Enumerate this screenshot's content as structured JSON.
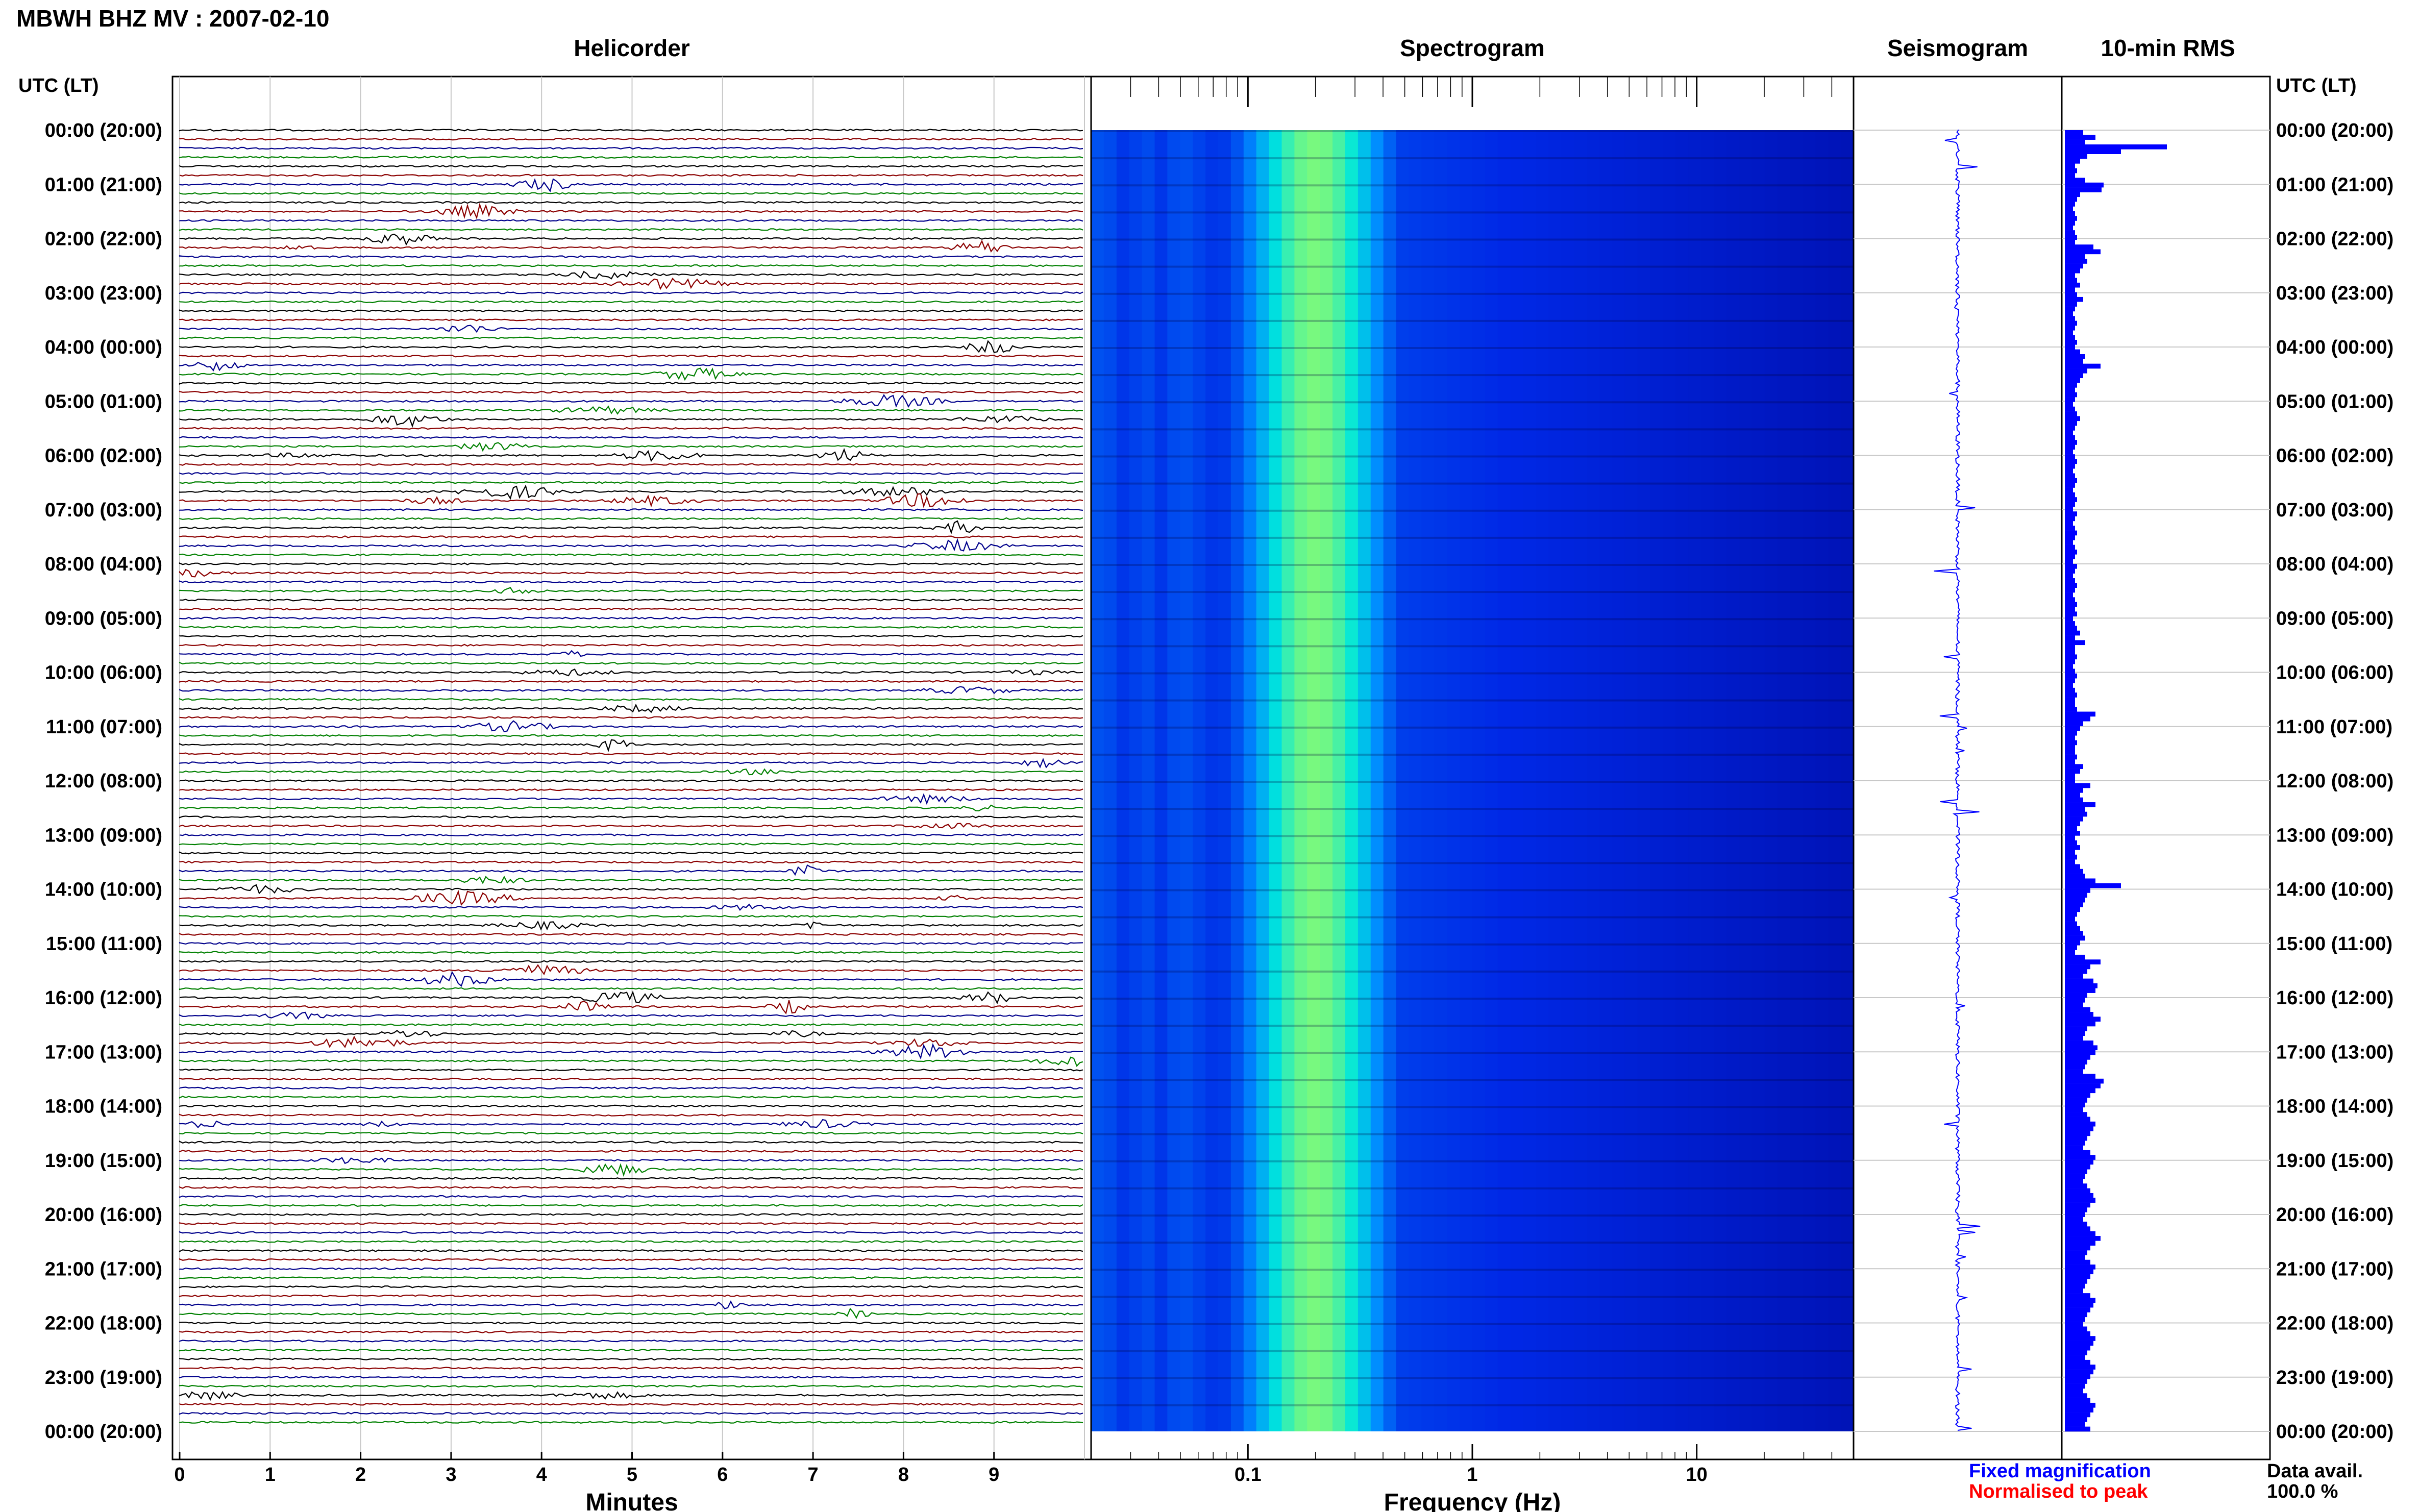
{
  "figure_title": "MBWH BHZ MV : 2007-02-10",
  "colors": {
    "trace_cycle": [
      "#000000",
      "#8b0000",
      "#00008b",
      "#008000"
    ],
    "spectrogram_low": "#00008b",
    "spectrogram_high": "#a0ff60",
    "seismogram": "#0000ff",
    "rms_bar": "#0000ff",
    "grid": "#c8c8c8"
  },
  "legend": {
    "fixed": {
      "text": "Fixed magnification",
      "color": "#0000ff"
    },
    "normalised": {
      "text": "Normalised to peak",
      "color": "#ff0000"
    }
  },
  "data_avail": {
    "label": "Data avail.",
    "value": "100.0 %"
  },
  "chart_data": [
    {
      "type": "heatmap",
      "title": "Helicorder",
      "xlabel": "Minutes",
      "ylabel": "UTC (LT)",
      "xlim": [
        0,
        10
      ],
      "xticks": [
        "0",
        "1",
        "2",
        "3",
        "4",
        "5",
        "6",
        "7",
        "8",
        "9"
      ],
      "y_categories": [
        "00:00 (20:00)",
        "01:00 (21:00)",
        "02:00 (22:00)",
        "03:00 (23:00)",
        "04:00 (00:00)",
        "05:00 (01:00)",
        "06:00 (02:00)",
        "07:00 (03:00)",
        "08:00 (04:00)",
        "09:00 (05:00)",
        "10:00 (06:00)",
        "11:00 (07:00)",
        "12:00 (08:00)",
        "13:00 (09:00)",
        "14:00 (10:00)",
        "15:00 (11:00)",
        "16:00 (12:00)",
        "17:00 (13:00)",
        "18:00 (14:00)",
        "19:00 (15:00)",
        "20:00 (16:00)",
        "21:00 (17:00)",
        "22:00 (18:00)",
        "23:00 (19:00)",
        "00:00 (20:00)"
      ],
      "rows_per_hour": 6,
      "grid": true
    },
    {
      "type": "heatmap",
      "title": "Spectrogram",
      "xlabel": "Frequency (Hz)",
      "x_scale": "log",
      "xlim": [
        0.02,
        50
      ],
      "xticks": [
        {
          "value": 0.1,
          "label": "0.1"
        },
        {
          "value": 1,
          "label": "1"
        },
        {
          "value": 10,
          "label": "10"
        }
      ],
      "peak_frequency_hz": 0.2
    },
    {
      "type": "line",
      "title": "Seismogram",
      "grid": true
    },
    {
      "type": "bar",
      "title": "10-min RMS",
      "orientation": "horizontal",
      "ylabel": "UTC (LT)",
      "bin_minutes": 10,
      "values": [
        0.18,
        0.3,
        0.2,
        1.0,
        0.55,
        0.22,
        0.15,
        0.1,
        0.12,
        0.1,
        0.2,
        0.38,
        0.36,
        0.15,
        0.12,
        0.1,
        0.08,
        0.1,
        0.12,
        0.1,
        0.08,
        0.1,
        0.12,
        0.1,
        0.28,
        0.35,
        0.2,
        0.22,
        0.18,
        0.15,
        0.1,
        0.12,
        0.15,
        0.1,
        0.12,
        0.18,
        0.12,
        0.1,
        0.08,
        0.1,
        0.12,
        0.1,
        0.08,
        0.1,
        0.12,
        0.1,
        0.15,
        0.2,
        0.18,
        0.35,
        0.22,
        0.18,
        0.15,
        0.12,
        0.1,
        0.12,
        0.1,
        0.08,
        0.1,
        0.12,
        0.15,
        0.12,
        0.1,
        0.08,
        0.1,
        0.12,
        0.1,
        0.08,
        0.1,
        0.12,
        0.1,
        0.08,
        0.1,
        0.12,
        0.1,
        0.08,
        0.1,
        0.12,
        0.1,
        0.08,
        0.12,
        0.1,
        0.08,
        0.1,
        0.12,
        0.1,
        0.08,
        0.1,
        0.12,
        0.1,
        0.08,
        0.12,
        0.1,
        0.08,
        0.1,
        0.12,
        0.1,
        0.08,
        0.1,
        0.12,
        0.1,
        0.12,
        0.08,
        0.1,
        0.12,
        0.15,
        0.1,
        0.2,
        0.1,
        0.1,
        0.12,
        0.1,
        0.08,
        0.1,
        0.12,
        0.1,
        0.08,
        0.1,
        0.12,
        0.1,
        0.1,
        0.12,
        0.3,
        0.25,
        0.18,
        0.15,
        0.12,
        0.1,
        0.12,
        0.1,
        0.1,
        0.12,
        0.1,
        0.18,
        0.15,
        0.1,
        0.1,
        0.25,
        0.18,
        0.15,
        0.18,
        0.3,
        0.2,
        0.22,
        0.18,
        0.15,
        0.12,
        0.15,
        0.1,
        0.12,
        0.15,
        0.1,
        0.12,
        0.1,
        0.15,
        0.18,
        0.2,
        0.3,
        0.55,
        0.25,
        0.22,
        0.2,
        0.18,
        0.15,
        0.12,
        0.1,
        0.12,
        0.15,
        0.18,
        0.2,
        0.15,
        0.12,
        0.1,
        0.2,
        0.35,
        0.25,
        0.22,
        0.18,
        0.28,
        0.32,
        0.3,
        0.22,
        0.2,
        0.18,
        0.25,
        0.28,
        0.35,
        0.3,
        0.22,
        0.2,
        0.18,
        0.28,
        0.32,
        0.3,
        0.25,
        0.22,
        0.2,
        0.18,
        0.3,
        0.38,
        0.35,
        0.3,
        0.25,
        0.22,
        0.2,
        0.18,
        0.22,
        0.25,
        0.3,
        0.28,
        0.25,
        0.22,
        0.2,
        0.18,
        0.25,
        0.3,
        0.28,
        0.25,
        0.22,
        0.2,
        0.18,
        0.22,
        0.25,
        0.28,
        0.3,
        0.25,
        0.22,
        0.2,
        0.18,
        0.22,
        0.25,
        0.3,
        0.35,
        0.3,
        0.25,
        0.22,
        0.2,
        0.25,
        0.3,
        0.28,
        0.25,
        0.22,
        0.2,
        0.18,
        0.25,
        0.3,
        0.28,
        0.25,
        0.22,
        0.2,
        0.18,
        0.22,
        0.25,
        0.3,
        0.28,
        0.25,
        0.22,
        0.2,
        0.25,
        0.3,
        0.28,
        0.25,
        0.22,
        0.2,
        0.18,
        0.22,
        0.25,
        0.3,
        0.28,
        0.25,
        0.22,
        0.2,
        0.25
      ]
    }
  ]
}
